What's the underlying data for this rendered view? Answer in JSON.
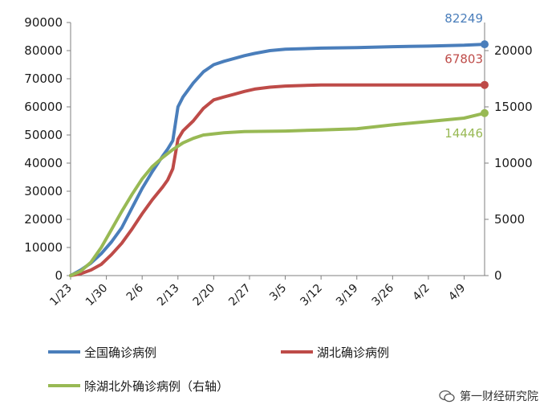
{
  "chart_data": {
    "type": "line",
    "x_ticks": [
      "1/23",
      "1/30",
      "2/6",
      "2/13",
      "2/20",
      "2/27",
      "3/5",
      "3/12",
      "3/19",
      "3/26",
      "4/2",
      "4/9"
    ],
    "x_range": [
      "1/23",
      "4/13"
    ],
    "y_left": {
      "ticks": [
        0,
        10000,
        20000,
        30000,
        40000,
        50000,
        60000,
        70000,
        80000,
        90000
      ],
      "ylim": [
        0,
        90000
      ]
    },
    "y_right": {
      "ticks": [
        0,
        5000,
        10000,
        15000,
        20000
      ],
      "ylim": [
        0,
        22500
      ]
    },
    "grid": false,
    "legend_position": "bottom",
    "series": [
      {
        "name": "全国确诊病例",
        "axis": "left",
        "color": "#4a7ebb",
        "end_label": "82249",
        "points": [
          [
            "1/23",
            0
          ],
          [
            "1/25",
            2000
          ],
          [
            "1/27",
            4500
          ],
          [
            "1/29",
            7800
          ],
          [
            "1/31",
            12000
          ],
          [
            "2/2",
            17000
          ],
          [
            "2/4",
            24000
          ],
          [
            "2/6",
            31000
          ],
          [
            "2/8",
            37000
          ],
          [
            "2/10",
            42500
          ],
          [
            "2/11",
            45000
          ],
          [
            "2/12",
            48000
          ],
          [
            "2/13",
            60000
          ],
          [
            "2/14",
            63500
          ],
          [
            "2/16",
            68500
          ],
          [
            "2/18",
            72500
          ],
          [
            "2/20",
            75000
          ],
          [
            "2/22",
            76200
          ],
          [
            "2/24",
            77200
          ],
          [
            "2/26",
            78200
          ],
          [
            "2/28",
            79000
          ],
          [
            "3/2",
            80000
          ],
          [
            "3/5",
            80500
          ],
          [
            "3/12",
            80900
          ],
          [
            "3/19",
            81100
          ],
          [
            "3/26",
            81400
          ],
          [
            "4/2",
            81600
          ],
          [
            "4/9",
            81900
          ],
          [
            "4/13",
            82249
          ]
        ]
      },
      {
        "name": "湖北确诊病例",
        "axis": "left",
        "color": "#be4b48",
        "end_label": "67803",
        "points": [
          [
            "1/23",
            0
          ],
          [
            "1/25",
            700
          ],
          [
            "1/27",
            2000
          ],
          [
            "1/29",
            4000
          ],
          [
            "1/31",
            7500
          ],
          [
            "2/2",
            11500
          ],
          [
            "2/4",
            16500
          ],
          [
            "2/6",
            22000
          ],
          [
            "2/8",
            27000
          ],
          [
            "2/10",
            31500
          ],
          [
            "2/11",
            34000
          ],
          [
            "2/12",
            38000
          ],
          [
            "2/13",
            48500
          ],
          [
            "2/14",
            51500
          ],
          [
            "2/16",
            55000
          ],
          [
            "2/18",
            59500
          ],
          [
            "2/20",
            62500
          ],
          [
            "2/22",
            63500
          ],
          [
            "2/24",
            64500
          ],
          [
            "2/26",
            65500
          ],
          [
            "2/28",
            66300
          ],
          [
            "3/2",
            67000
          ],
          [
            "3/5",
            67400
          ],
          [
            "3/12",
            67790
          ],
          [
            "3/19",
            67800
          ],
          [
            "3/26",
            67800
          ],
          [
            "4/2",
            67802
          ],
          [
            "4/9",
            67803
          ],
          [
            "4/13",
            67803
          ]
        ]
      },
      {
        "name": "除湖北外确诊病例（右轴）",
        "axis": "right",
        "color": "#98b954",
        "end_label": "14446",
        "points": [
          [
            "1/23",
            0
          ],
          [
            "1/25",
            400
          ],
          [
            "1/27",
            1200
          ],
          [
            "1/29",
            2500
          ],
          [
            "1/31",
            4100
          ],
          [
            "2/2",
            5700
          ],
          [
            "2/4",
            7200
          ],
          [
            "2/6",
            8600
          ],
          [
            "2/8",
            9700
          ],
          [
            "2/10",
            10500
          ],
          [
            "2/12",
            11200
          ],
          [
            "2/14",
            11800
          ],
          [
            "2/16",
            12200
          ],
          [
            "2/18",
            12500
          ],
          [
            "2/20",
            12600
          ],
          [
            "2/22",
            12700
          ],
          [
            "2/26",
            12800
          ],
          [
            "3/5",
            12850
          ],
          [
            "3/12",
            12950
          ],
          [
            "3/19",
            13050
          ],
          [
            "3/26",
            13400
          ],
          [
            "4/2",
            13700
          ],
          [
            "4/9",
            14000
          ],
          [
            "4/13",
            14446
          ]
        ]
      }
    ]
  },
  "watermark": {
    "text": "第一财经研究院"
  }
}
